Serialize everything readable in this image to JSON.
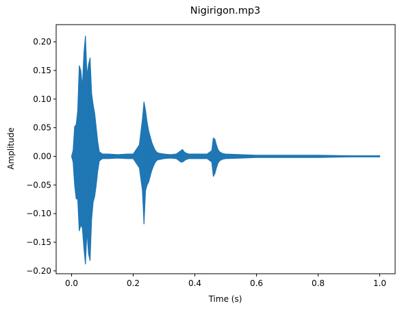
{
  "chart_data": {
    "type": "line",
    "title": "Nigirigon.mp3",
    "xlabel": "Time (s)",
    "ylabel": "Amplitude",
    "xlim": [
      -0.05,
      1.05
    ],
    "ylim": [
      -0.205,
      0.23
    ],
    "xticks": [
      0.0,
      0.2,
      0.4,
      0.6,
      0.8,
      1.0
    ],
    "xtick_labels": [
      "0.0",
      "0.2",
      "0.4",
      "0.6",
      "0.8",
      "1.0"
    ],
    "yticks": [
      -0.2,
      -0.15,
      -0.1,
      -0.05,
      0.0,
      0.05,
      0.1,
      0.15,
      0.2
    ],
    "ytick_labels": [
      "−0.20",
      "−0.15",
      "−0.10",
      "−0.05",
      "0.00",
      "0.05",
      "0.10",
      "0.15",
      "0.20"
    ],
    "grid": false,
    "color": "#1f77b4",
    "series": [
      {
        "x": [
          0.0,
          0.005,
          0.01,
          0.015,
          0.02,
          0.025,
          0.03,
          0.035,
          0.04,
          0.045,
          0.05,
          0.055,
          0.06,
          0.065,
          0.07,
          0.075,
          0.08,
          0.085,
          0.09,
          0.095,
          0.1,
          0.12,
          0.15,
          0.18,
          0.2,
          0.22,
          0.23,
          0.235,
          0.24,
          0.245,
          0.25,
          0.255,
          0.26,
          0.265,
          0.27,
          0.275,
          0.28,
          0.29,
          0.3,
          0.32,
          0.34,
          0.35,
          0.355,
          0.36,
          0.365,
          0.37,
          0.38,
          0.4,
          0.42,
          0.44,
          0.455,
          0.46,
          0.465,
          0.47,
          0.475,
          0.48,
          0.49,
          0.5,
          0.55,
          0.6,
          0.7,
          0.8,
          0.9,
          1.0
        ],
        "y_max": [
          0.0,
          0.01,
          0.052,
          0.055,
          0.08,
          0.158,
          0.15,
          0.12,
          0.18,
          0.21,
          0.14,
          0.16,
          0.172,
          0.11,
          0.09,
          0.075,
          0.05,
          0.025,
          0.008,
          0.006,
          0.004,
          0.004,
          0.003,
          0.004,
          0.004,
          0.02,
          0.065,
          0.095,
          0.08,
          0.06,
          0.045,
          0.035,
          0.025,
          0.018,
          0.012,
          0.008,
          0.006,
          0.005,
          0.004,
          0.003,
          0.004,
          0.008,
          0.01,
          0.012,
          0.008,
          0.006,
          0.004,
          0.004,
          0.004,
          0.004,
          0.01,
          0.032,
          0.03,
          0.02,
          0.012,
          0.008,
          0.005,
          0.004,
          0.003,
          0.002,
          0.002,
          0.002,
          0.001,
          0.001
        ],
        "y_min": [
          0.0,
          -0.01,
          -0.05,
          -0.074,
          -0.075,
          -0.13,
          -0.12,
          -0.125,
          -0.16,
          -0.188,
          -0.13,
          -0.17,
          -0.182,
          -0.11,
          -0.08,
          -0.07,
          -0.05,
          -0.025,
          -0.008,
          -0.006,
          -0.004,
          -0.004,
          -0.003,
          -0.004,
          -0.004,
          -0.02,
          -0.06,
          -0.118,
          -0.06,
          -0.05,
          -0.045,
          -0.035,
          -0.025,
          -0.018,
          -0.012,
          -0.008,
          -0.006,
          -0.005,
          -0.004,
          -0.003,
          -0.004,
          -0.008,
          -0.01,
          -0.01,
          -0.008,
          -0.006,
          -0.004,
          -0.004,
          -0.004,
          -0.004,
          -0.01,
          -0.035,
          -0.03,
          -0.02,
          -0.012,
          -0.008,
          -0.005,
          -0.004,
          -0.003,
          -0.002,
          -0.002,
          -0.002,
          -0.001,
          -0.001
        ]
      }
    ]
  }
}
